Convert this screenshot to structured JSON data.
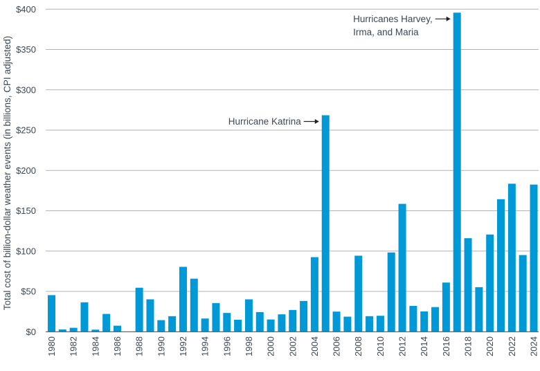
{
  "chart_data": {
    "type": "bar",
    "title": "",
    "xlabel": "",
    "ylabel": "Total cost of billion-dollar weather events (in billions, CPI adjusted)",
    "ylim": [
      0,
      400
    ],
    "yticks": [
      0,
      50,
      100,
      150,
      200,
      250,
      300,
      350,
      400
    ],
    "ytick_labels": [
      "$0",
      "$50",
      "$100",
      "$150",
      "$200",
      "$250",
      "$300",
      "$350",
      "$400"
    ],
    "grid": true,
    "bar_color": "#0099d8",
    "categories": [
      1980,
      1981,
      1982,
      1983,
      1984,
      1985,
      1986,
      1987,
      1988,
      1989,
      1990,
      1991,
      1992,
      1993,
      1994,
      1995,
      1996,
      1997,
      1998,
      1999,
      2000,
      2001,
      2002,
      2003,
      2004,
      2005,
      2006,
      2007,
      2008,
      2009,
      2010,
      2011,
      2012,
      2013,
      2014,
      2015,
      2016,
      2017,
      2018,
      2019,
      2020,
      2021,
      2022,
      2023,
      2024
    ],
    "xtick_labels": [
      "1980",
      "1982",
      "1984",
      "1986",
      "1988",
      "1990",
      "1992",
      "1994",
      "1996",
      "1998",
      "2000",
      "2002",
      "2004",
      "2006",
      "2008",
      "2010",
      "2012",
      "2014",
      "2016",
      "2018",
      "2020",
      "2022",
      "2024"
    ],
    "values": [
      45.4,
      2.9,
      4.9,
      36.5,
      2.6,
      22.1,
      7.5,
      0,
      54.6,
      40.2,
      14.4,
      19.3,
      80.5,
      65.8,
      16.4,
      35.6,
      23.3,
      14.9,
      40.2,
      24.4,
      15.2,
      21.6,
      27.0,
      38.2,
      92.5,
      268.5,
      25.0,
      18.7,
      94.3,
      19.3,
      19.8,
      98.3,
      158.6,
      32.1,
      25.2,
      30.6,
      61.0,
      395.7,
      116.0,
      55.3,
      120.6,
      164.4,
      183.6,
      95.1,
      182.5
    ],
    "annotations": [
      {
        "year": 2005,
        "lines": [
          "Hurricane Katrina"
        ]
      },
      {
        "year": 2017,
        "lines": [
          "Hurricanes Harvey,",
          "Irma, and Maria"
        ]
      }
    ]
  }
}
